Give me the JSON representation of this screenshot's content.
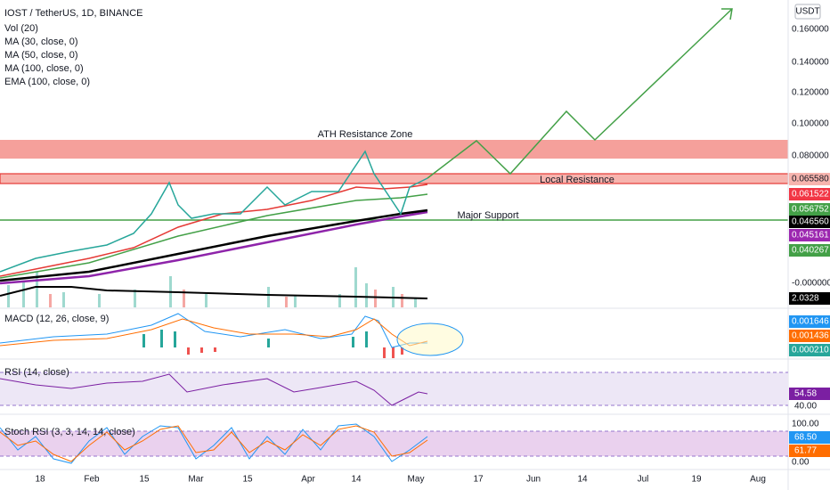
{
  "header": {
    "title": "IOST / TetherUS, 1D, BINANCE",
    "indicators": [
      "Vol (20)",
      "MA (30, close, 0)",
      "MA (50, close, 0)",
      "MA (100, close, 0)",
      "EMA (100, close, 0)"
    ]
  },
  "annotations": [
    "ATH Resistance Zone",
    "Local Resistance",
    "Major Support"
  ],
  "price_axis": {
    "unit": "USDT",
    "ticks": [
      "0.160000",
      "0.140000",
      "0.120000",
      "0.100000",
      "0.080000",
      "-0.000000"
    ],
    "tags": [
      "0.065580",
      "0.061522",
      "0.056752",
      "0.046560",
      "0.045161",
      "0.040267"
    ],
    "volume_tag": "2.0328"
  },
  "panes": {
    "macd": {
      "title": "MACD (12, 26, close, 9)",
      "tags": [
        "0.001646",
        "0.001436",
        "0.000210"
      ]
    },
    "rsi": {
      "title": "RSI (14, close)",
      "tag": "54.58",
      "ticks": [
        "40.00"
      ]
    },
    "stoch": {
      "title": "Stoch RSI (3, 3, 14, 14, close)",
      "tags": [
        "68.50",
        "61.77"
      ],
      "ticks": [
        "100.00",
        "0.00"
      ]
    }
  },
  "time_axis": [
    "18",
    "Feb",
    "15",
    "Mar",
    "15",
    "Apr",
    "14",
    "May",
    "17",
    "Jun",
    "14",
    "Jul",
    "19",
    "Aug"
  ]
}
